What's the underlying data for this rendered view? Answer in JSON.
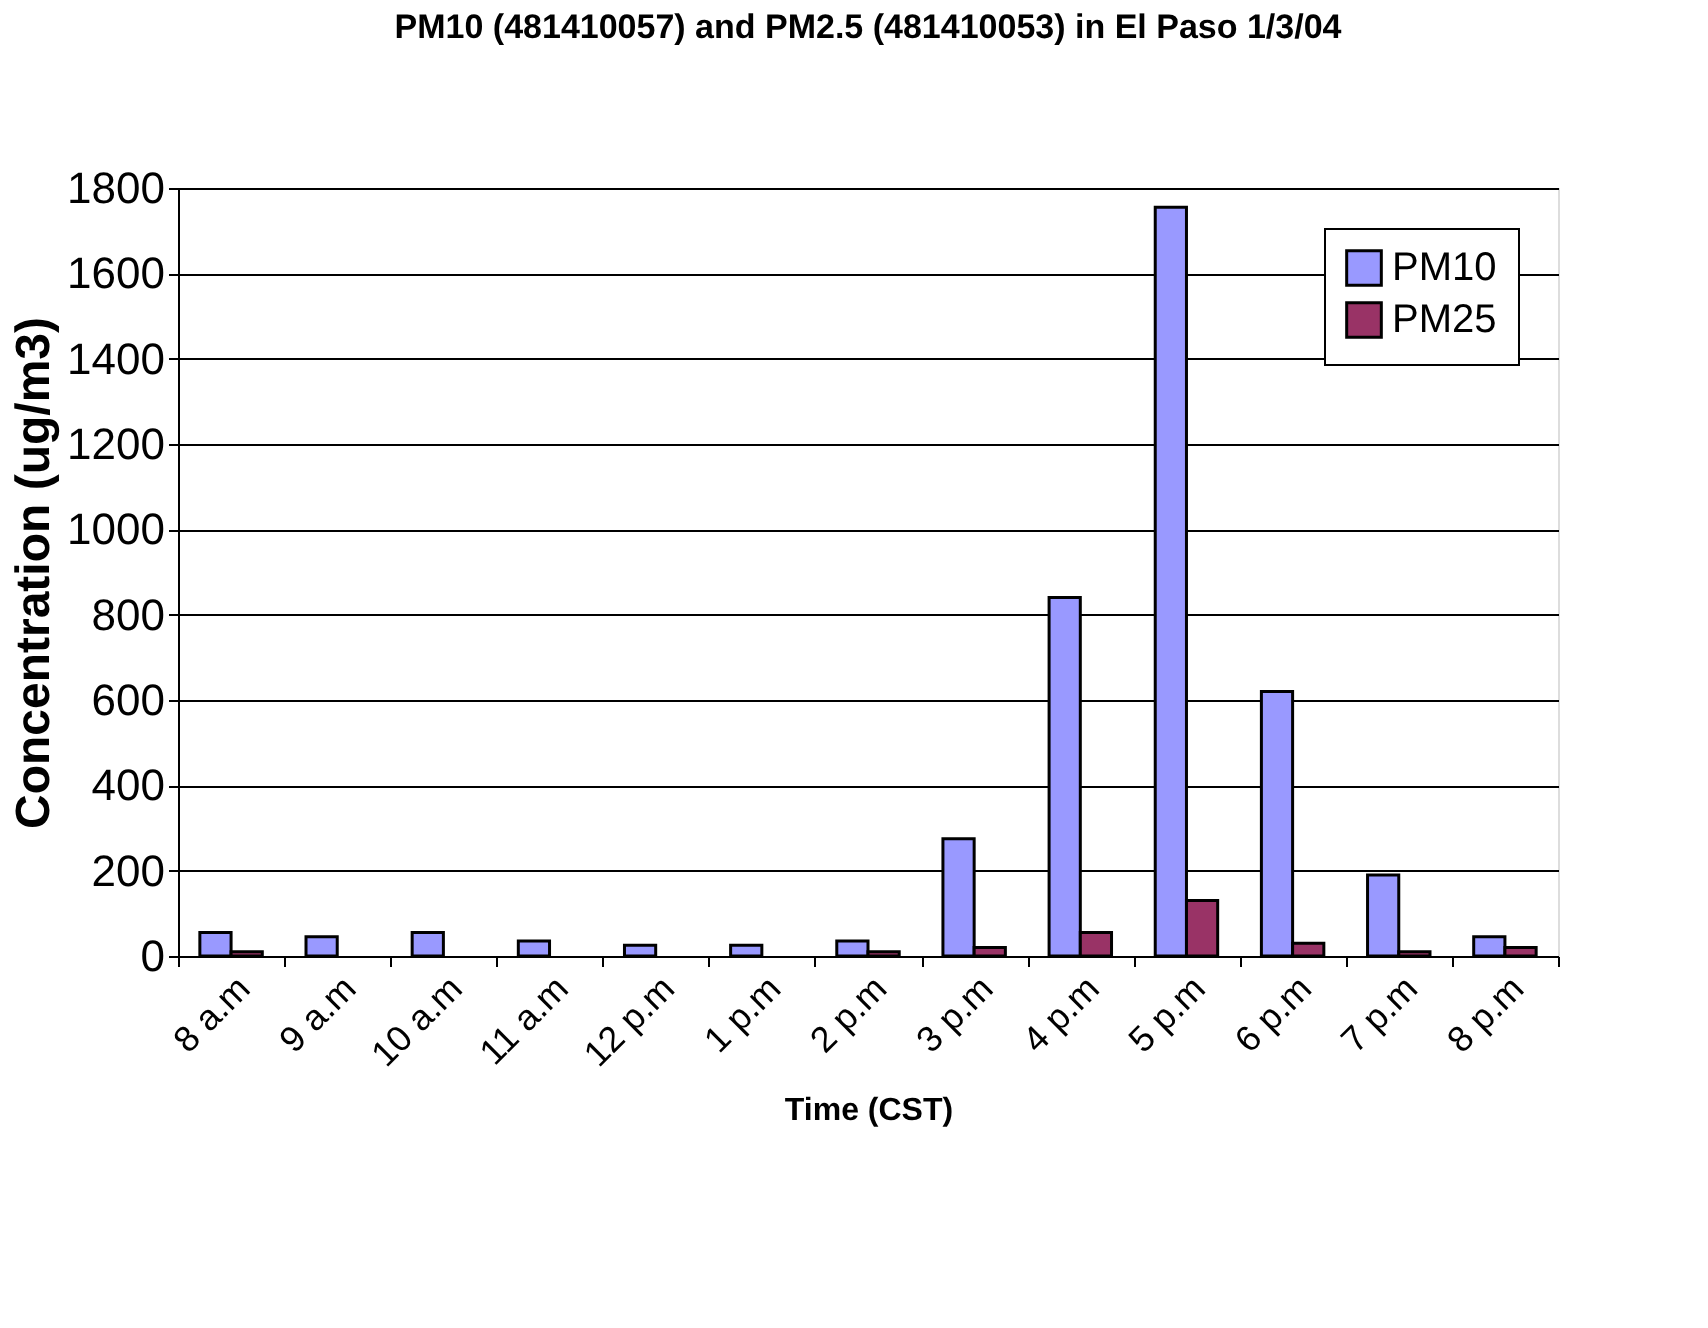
{
  "chart_data": {
    "type": "bar",
    "title": "PM10 (481410057) and PM2.5 (481410053) in El Paso 1/3/04",
    "xlabel": "Time (CST)",
    "ylabel": "Concentration (ug/m3)",
    "categories": [
      "8 a.m",
      "9 a.m",
      "10 a.m",
      "11 a.m",
      "12 p.m",
      "1 p.m",
      "2 p.m",
      "3 p.m",
      "4 p.m",
      "5 p.m",
      "6 p.m",
      "7 p.m",
      "8 p.m"
    ],
    "series": [
      {
        "name": "PM10",
        "color": "#9999ff",
        "values": [
          55,
          45,
          55,
          35,
          25,
          25,
          35,
          275,
          840,
          1755,
          620,
          190,
          45
        ]
      },
      {
        "name": "PM25",
        "color": "#993366",
        "values": [
          10,
          null,
          null,
          null,
          null,
          null,
          10,
          20,
          55,
          130,
          30,
          10,
          20
        ]
      }
    ],
    "ylim": [
      0,
      1800
    ],
    "yticks": [
      0,
      200,
      400,
      600,
      800,
      1000,
      1200,
      1400,
      1600,
      1800
    ],
    "grid": "y",
    "legend": "top right"
  }
}
